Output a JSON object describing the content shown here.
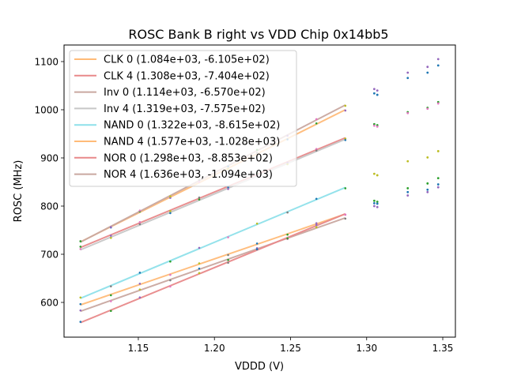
{
  "chart_data": {
    "type": "scatter",
    "title": "ROSC Bank B right vs VDD Chip 0x14bb5",
    "xlabel": "VDDD (V)",
    "ylabel": "ROSC (MHz)",
    "xlim": [
      1.1012,
      1.3583
    ],
    "ylim": [
      527.9,
      1134.4
    ],
    "xticks": [
      1.15,
      1.2,
      1.25,
      1.3,
      1.35
    ],
    "xtick_labels": [
      "1.15",
      "1.20",
      "1.25",
      "1.30",
      "1.35"
    ],
    "yticks": [
      600,
      700,
      800,
      900,
      1000,
      1100
    ],
    "ytick_labels": [
      "600",
      "700",
      "800",
      "900",
      "1000",
      "1100"
    ],
    "grid": false,
    "legend_position": "top-left",
    "fit_range": [
      1.112,
      1.286
    ],
    "series": [
      {
        "name": "CLK 0 (1.084e+03, -6.105e+02)",
        "slope": 1084,
        "intercept": -610.5,
        "color": "#ffbb78"
      },
      {
        "name": "CLK 4 (1.308e+03, -7.404e+02)",
        "slope": 1308,
        "intercept": -740.4,
        "color": "#e8898a"
      },
      {
        "name": "Inv 0 (1.114e+03, -6.570e+02)",
        "slope": 1114,
        "intercept": -657.0,
        "color": "#c9a8a0"
      },
      {
        "name": "Inv 4 (1.319e+03, -7.575e+02)",
        "slope": 1319,
        "intercept": -757.5,
        "color": "#c7c7c7"
      },
      {
        "name": "NAND 0 (1.322e+03, -8.615e+02)",
        "slope": 1322,
        "intercept": -861.5,
        "color": "#8ee0ea"
      },
      {
        "name": "NAND 4 (1.577e+03, -1.028e+03)",
        "slope": 1577,
        "intercept": -1028.0,
        "color": "#ffbb78"
      },
      {
        "name": "NOR 0 (1.298e+03, -8.853e+02)",
        "slope": 1298,
        "intercept": -885.3,
        "color": "#e8898a"
      },
      {
        "name": "NOR 4 (1.636e+03, -1.094e+03)",
        "slope": 1636,
        "intercept": -1094.0,
        "color": "#c9a8a0"
      }
    ],
    "scatter_points": [
      {
        "x": 1.305,
        "y": 1043,
        "color": "#9467bd"
      },
      {
        "x": 1.307,
        "y": 1040,
        "color": "#9467bd"
      },
      {
        "x": 1.327,
        "y": 1077,
        "color": "#9467bd"
      },
      {
        "x": 1.34,
        "y": 1089,
        "color": "#9467bd"
      },
      {
        "x": 1.347,
        "y": 1105,
        "color": "#9467bd"
      },
      {
        "x": 1.305,
        "y": 1034,
        "color": "#1f77b4"
      },
      {
        "x": 1.307,
        "y": 1031,
        "color": "#1f77b4"
      },
      {
        "x": 1.327,
        "y": 1066,
        "color": "#1f77b4"
      },
      {
        "x": 1.34,
        "y": 1077,
        "color": "#1f77b4"
      },
      {
        "x": 1.347,
        "y": 1092,
        "color": "#1f77b4"
      },
      {
        "x": 1.305,
        "y": 970,
        "color": "#2ca02c"
      },
      {
        "x": 1.307,
        "y": 968,
        "color": "#2ca02c"
      },
      {
        "x": 1.327,
        "y": 995,
        "color": "#2ca02c"
      },
      {
        "x": 1.34,
        "y": 1004,
        "color": "#2ca02c"
      },
      {
        "x": 1.347,
        "y": 1016,
        "color": "#2ca02c"
      },
      {
        "x": 1.305,
        "y": 967,
        "color": "#e377c2"
      },
      {
        "x": 1.307,
        "y": 965,
        "color": "#e377c2"
      },
      {
        "x": 1.327,
        "y": 993,
        "color": "#e377c2"
      },
      {
        "x": 1.34,
        "y": 1002,
        "color": "#e377c2"
      },
      {
        "x": 1.347,
        "y": 1013,
        "color": "#e377c2"
      },
      {
        "x": 1.305,
        "y": 867,
        "color": "#bcbd22"
      },
      {
        "x": 1.307,
        "y": 864,
        "color": "#bcbd22"
      },
      {
        "x": 1.327,
        "y": 893,
        "color": "#bcbd22"
      },
      {
        "x": 1.34,
        "y": 901,
        "color": "#bcbd22"
      },
      {
        "x": 1.347,
        "y": 914,
        "color": "#bcbd22"
      },
      {
        "x": 1.305,
        "y": 811,
        "color": "#2ca02c"
      },
      {
        "x": 1.307,
        "y": 809,
        "color": "#2ca02c"
      },
      {
        "x": 1.327,
        "y": 837,
        "color": "#2ca02c"
      },
      {
        "x": 1.34,
        "y": 847,
        "color": "#2ca02c"
      },
      {
        "x": 1.347,
        "y": 858,
        "color": "#2ca02c"
      },
      {
        "x": 1.305,
        "y": 806,
        "color": "#1f77b4"
      },
      {
        "x": 1.307,
        "y": 805,
        "color": "#1f77b4"
      },
      {
        "x": 1.327,
        "y": 829,
        "color": "#1f77b4"
      },
      {
        "x": 1.34,
        "y": 834,
        "color": "#1f77b4"
      },
      {
        "x": 1.347,
        "y": 845,
        "color": "#1f77b4"
      },
      {
        "x": 1.305,
        "y": 800,
        "color": "#9467bd"
      },
      {
        "x": 1.307,
        "y": 798,
        "color": "#9467bd"
      },
      {
        "x": 1.327,
        "y": 822,
        "color": "#9467bd"
      },
      {
        "x": 1.34,
        "y": 829,
        "color": "#9467bd"
      },
      {
        "x": 1.347,
        "y": 839,
        "color": "#9467bd"
      }
    ],
    "sample_x": [
      1.112,
      1.132,
      1.151,
      1.171,
      1.19,
      1.209,
      1.228,
      1.248,
      1.267,
      1.286
    ]
  }
}
